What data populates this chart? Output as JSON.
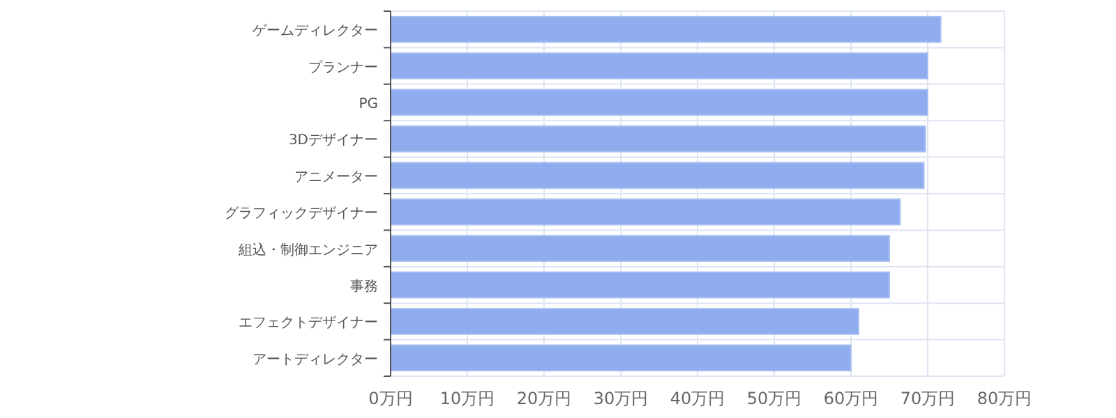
{
  "chart_data": {
    "type": "bar",
    "orientation": "horizontal",
    "categories": [
      "ゲームディレクター",
      "プランナー",
      "PG",
      "3Dデザイナー",
      "アニメーター",
      "グラフィックデザイナー",
      "組込・制御エンジニア",
      "事務",
      "エフェクトデザイナー",
      "アートディレクター"
    ],
    "values": [
      71.7,
      70.0,
      70.0,
      69.7,
      69.5,
      66.4,
      65.0,
      65.0,
      61.0,
      60.0
    ],
    "color": "#8fadee",
    "xlim": [
      0,
      80
    ],
    "xticks": [
      {
        "value": 0,
        "label": "0万円"
      },
      {
        "value": 10,
        "label": "10万円"
      },
      {
        "value": 20,
        "label": "20万円"
      },
      {
        "value": 30,
        "label": "30万円"
      },
      {
        "value": 40,
        "label": "40万円"
      },
      {
        "value": 50,
        "label": "50万円"
      },
      {
        "value": 60,
        "label": "60万円"
      },
      {
        "value": 70,
        "label": "70万円"
      },
      {
        "value": 80,
        "label": "80万円"
      }
    ],
    "grid": true
  }
}
